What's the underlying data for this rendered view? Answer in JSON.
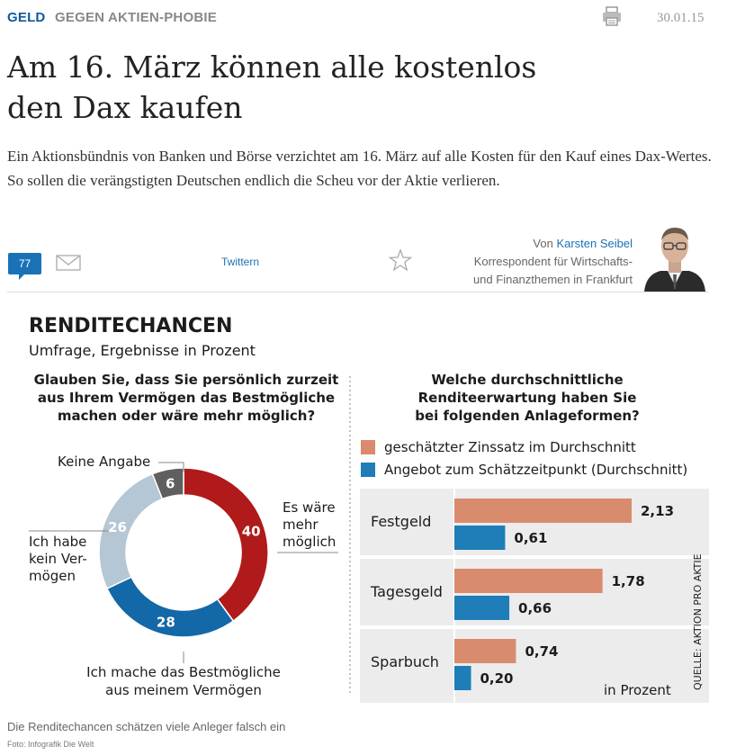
{
  "header": {
    "section": "GELD",
    "kicker": "GEGEN AKTIEN-PHOBIE",
    "date": "30.01.15"
  },
  "article": {
    "headline_line1": "Am 16. März können alle kostenlos",
    "headline_line2": "den Dax kaufen",
    "teaser": "Ein Aktionsbündnis von Banken und Börse verzichtet am 16. März auf alle Kosten für den Kauf eines Dax-Wertes. So sollen die verängstigten Deutschen endlich die Scheu vor der Aktie verlieren."
  },
  "social": {
    "comment_count": "77",
    "twitter_label": "Twittern"
  },
  "author": {
    "prefix": "Von",
    "name": "Karsten Seibel",
    "role_line1": "Korrespondent für Wirtschafts-",
    "role_line2": "und Finanzthemen in Frankfurt"
  },
  "graphic": {
    "title": "RENDITECHANCEN",
    "subtitle": "Umfrage, Ergebnisse in Prozent",
    "source": "QUELLE: AKTION PRO AKTIE",
    "left_question": [
      "Glauben Sie, dass Sie persönlich zurzeit",
      "aus Ihrem Vermögen das Bestmögliche",
      "machen oder wäre mehr möglich?"
    ],
    "right_question": [
      "Welche durchschnittliche",
      "Renditeerwartung haben Sie",
      "bei folgenden Anlageformen?"
    ],
    "legend": [
      "geschätzter Zinssatz im Durchschnitt",
      "Angebot zum Schätzzeitpunkt (Durchschnitt)"
    ],
    "unit_note": "in Prozent",
    "donut_labels": {
      "keine": "Keine Angabe",
      "mehr": [
        "Es wäre",
        "mehr",
        "möglich"
      ],
      "kein": [
        "Ich habe",
        "kein Ver-",
        "mögen"
      ],
      "best": [
        "Ich mache das Bestmögliche",
        "aus meinem Vermögen"
      ]
    },
    "colors": {
      "red": "#b01a1a",
      "blue": "#1368a7",
      "lightblue": "#b5c6d4",
      "gray": "#5f5f5f",
      "salmon": "#d98b6e",
      "barblue": "#1f7db8",
      "panel": "#ececec"
    }
  },
  "chart_data": [
    {
      "type": "pie",
      "title": "Glauben Sie, dass Sie persönlich zurzeit aus Ihrem Vermögen das Bestmögliche machen oder wäre mehr möglich?",
      "categories": [
        "Es wäre mehr möglich",
        "Ich mache das Bestmögliche aus meinem Vermögen",
        "Ich habe kein Vermögen",
        "Keine Angabe"
      ],
      "values": [
        40,
        28,
        26,
        6
      ]
    },
    {
      "type": "bar",
      "title": "Welche durchschnittliche Renditeerwartung haben Sie bei folgenden Anlageformen?",
      "categories": [
        "Festgeld",
        "Tagesgeld",
        "Sparbuch"
      ],
      "series": [
        {
          "name": "geschätzter Zinssatz im Durchschnitt",
          "values": [
            2.13,
            1.78,
            0.74
          ]
        },
        {
          "name": "Angebot zum Schätzzeitpunkt (Durchschnitt)",
          "values": [
            0.61,
            0.66,
            0.2
          ]
        }
      ],
      "value_labels": [
        [
          "2,13",
          "1,78",
          "0,74"
        ],
        [
          "0,61",
          "0,66",
          "0,20"
        ]
      ],
      "xlabel": "in Prozent",
      "xlim": [
        0,
        2.5
      ]
    }
  ],
  "caption": "Die Renditechancen schätzen viele Anleger falsch ein",
  "credit": "Foto: Infografik Die Welt"
}
